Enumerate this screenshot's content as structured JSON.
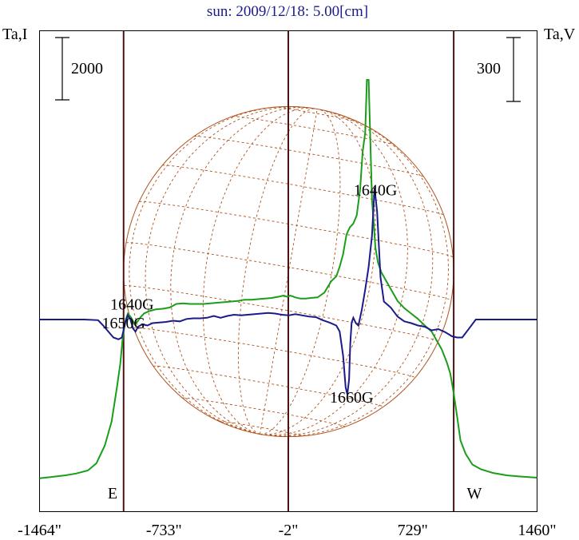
{
  "chart_data": {
    "type": "line",
    "title": "sun: 2009/12/18: 5.00[cm]",
    "left_axis_label": "Ta,I",
    "right_axis_label": "Ta,V",
    "xlim": [
      -1464,
      1460
    ],
    "x_ticks": [
      {
        "label": "-1464\"",
        "value": -1464
      },
      {
        "label": "-733\"",
        "value": -733
      },
      {
        "label": "-2\"",
        "value": -2
      },
      {
        "label": "729\"",
        "value": 729
      },
      {
        "label": "1460\"",
        "value": 1460
      }
    ],
    "scale_bars": {
      "left": "2000",
      "right": "300"
    },
    "limb_labels": {
      "east": "E",
      "west": "W"
    },
    "vertical_lines_x": [
      -970,
      -2,
      970
    ],
    "solar_disk_radius": 970,
    "annotations": [
      {
        "text": "1640G",
        "x": 510,
        "y_units": 2170
      },
      {
        "text": "1640G",
        "x": -920,
        "y_units": 260
      },
      {
        "text": "1650G",
        "x": -970,
        "y_units": -50
      },
      {
        "text": "1660G",
        "x": 370,
        "y_units": -1290
      }
    ],
    "series": [
      {
        "color": "#1a9e1a",
        "x": [
          -1464,
          -1400,
          -1310,
          -1250,
          -1180,
          -1130,
          -1080,
          -1040,
          -1010,
          -990,
          -975,
          -960,
          -945,
          -925,
          -905,
          -890,
          -870,
          -850,
          -820,
          -780,
          -740,
          -700,
          -660,
          -620,
          -580,
          -540,
          -500,
          -460,
          -420,
          -380,
          -340,
          -300,
          -260,
          -220,
          -180,
          -140,
          -100,
          -60,
          -30,
          -10,
          10,
          40,
          70,
          100,
          130,
          170,
          210,
          250,
          280,
          300,
          320,
          340,
          360,
          380,
          400,
          420,
          435,
          450,
          460,
          470,
          480,
          490,
          500,
          510,
          525,
          545,
          570,
          600,
          640,
          680,
          720,
          760,
          800,
          840,
          870,
          900,
          930,
          950,
          970,
          990,
          1010,
          1040,
          1080,
          1130,
          1200,
          1280,
          1360,
          1460
        ],
        "y": [
          -2650,
          -2630,
          -2600,
          -2570,
          -2520,
          -2400,
          -2100,
          -1700,
          -1150,
          -750,
          -300,
          -20,
          100,
          30,
          -80,
          -40,
          40,
          100,
          140,
          170,
          180,
          200,
          260,
          270,
          260,
          260,
          260,
          270,
          280,
          290,
          300,
          310,
          330,
          330,
          340,
          350,
          360,
          380,
          400,
          380,
          400,
          370,
          350,
          350,
          360,
          370,
          450,
          640,
          720,
          880,
          1090,
          1420,
          1540,
          1600,
          1740,
          2170,
          2800,
          3120,
          4000,
          4000,
          3000,
          2000,
          1600,
          1200,
          950,
          790,
          660,
          510,
          310,
          190,
          100,
          10,
          -100,
          -200,
          -350,
          -500,
          -720,
          -900,
          -1230,
          -1620,
          -2020,
          -2240,
          -2420,
          -2500,
          -2560,
          -2600,
          -2620,
          -2640
        ]
      },
      {
        "color": "#1a1a8c",
        "x": [
          -1464,
          -1300,
          -1200,
          -1120,
          -1090,
          -1060,
          -1030,
          -1000,
          -980,
          -960,
          -945,
          -930,
          -915,
          -900,
          -885,
          -860,
          -830,
          -800,
          -760,
          -720,
          -680,
          -640,
          -600,
          -560,
          -520,
          -480,
          -440,
          -400,
          -360,
          -320,
          -280,
          -240,
          -200,
          -160,
          -120,
          -80,
          -40,
          0,
          40,
          80,
          120,
          160,
          200,
          240,
          280,
          300,
          320,
          335,
          345,
          355,
          362,
          370,
          380,
          395,
          410,
          430,
          450,
          470,
          490,
          505,
          520,
          540,
          560,
          600,
          640,
          680,
          720,
          760,
          800,
          840,
          880,
          920,
          960,
          990,
          1020,
          1060,
          1100,
          1200,
          1300,
          1460
        ],
        "y": [
          0,
          0,
          0,
          -10,
          -100,
          -200,
          -300,
          -330,
          -300,
          -50,
          70,
          0,
          -150,
          -200,
          -120,
          -80,
          -100,
          -60,
          -50,
          -40,
          -20,
          -30,
          10,
          20,
          20,
          30,
          60,
          30,
          60,
          80,
          70,
          80,
          90,
          100,
          110,
          100,
          80,
          70,
          90,
          70,
          50,
          40,
          -10,
          -50,
          -100,
          -200,
          -600,
          -1130,
          -1250,
          -1000,
          -400,
          -50,
          30,
          -60,
          -100,
          160,
          500,
          880,
          1400,
          2200,
          1800,
          700,
          300,
          200,
          50,
          -30,
          -60,
          -100,
          -120,
          -180,
          -160,
          -210,
          -280,
          -300,
          -300,
          -150,
          0,
          0,
          0,
          0
        ]
      }
    ]
  },
  "colors": {
    "title": "#1a1a8c",
    "vertical_lines": "#4a1212",
    "disk": "#b0521c",
    "i_curve": "#1a9e1a",
    "v_curve": "#1a1a8c"
  }
}
